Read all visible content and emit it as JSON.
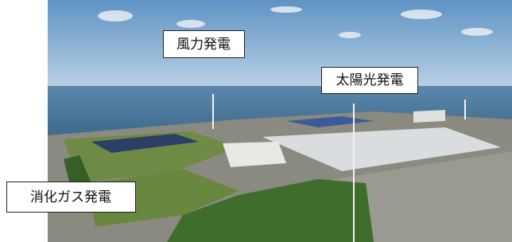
{
  "labels": [
    "風力発電",
    "太陽光発電",
    "消化ガス発電"
  ]
}
